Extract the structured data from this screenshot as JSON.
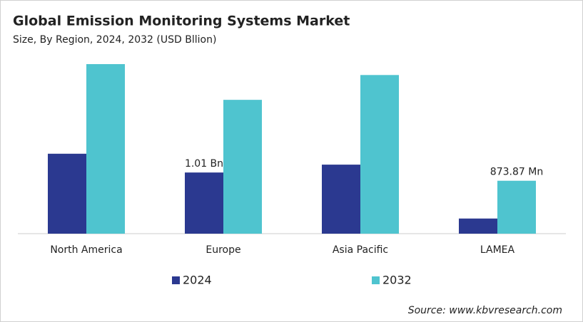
{
  "chart_data": {
    "type": "bar",
    "title": "Global Emission Monitoring Systems Market",
    "subtitle": "Size, By Region, 2024, 2032 (USD Bllion)",
    "source": "Source: www.kbvresearch.com",
    "categories": [
      "North America",
      "Europe",
      "Asia Pacific",
      "LAMEA"
    ],
    "series": [
      {
        "name": "2024",
        "color": "#2b3990",
        "values": [
          1.32,
          1.01,
          1.14,
          0.25
        ],
        "value_labels": [
          null,
          "1.01 Bn",
          null,
          null
        ]
      },
      {
        "name": "2032",
        "color": "#4fc4cf",
        "values": [
          2.8,
          2.21,
          2.62,
          0.87387
        ],
        "value_labels": [
          null,
          null,
          null,
          "873.87 Mn"
        ]
      }
    ],
    "ylim": [
      0,
      2.8
    ]
  }
}
